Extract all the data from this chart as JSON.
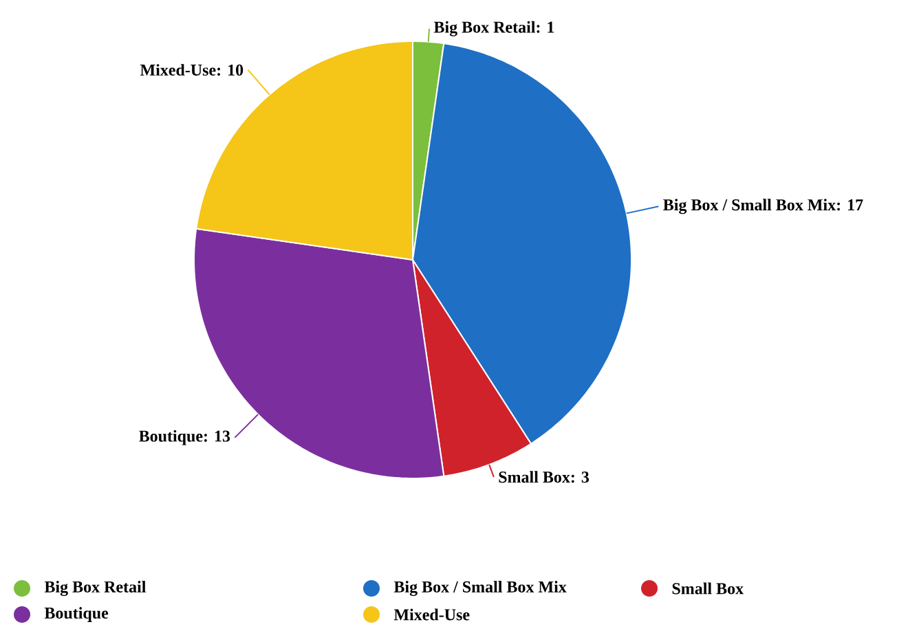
{
  "chart_data": {
    "type": "pie",
    "categories": [
      "Big Box Retail",
      "Big Box / Small Box Mix",
      "Small Box",
      "Boutique",
      "Mixed-Use"
    ],
    "values": [
      1,
      17,
      3,
      13,
      10
    ],
    "colors": [
      "#7cbf3c",
      "#1f6fc4",
      "#d0222b",
      "#7b2f9e",
      "#f5c518"
    ],
    "value_labels": [
      "Big Box Retail: 1",
      "Big Box / Small Box Mix: 17",
      "Small Box: 3",
      "Boutique: 13",
      "Mixed-Use: 10"
    ],
    "legend": "bottom"
  }
}
